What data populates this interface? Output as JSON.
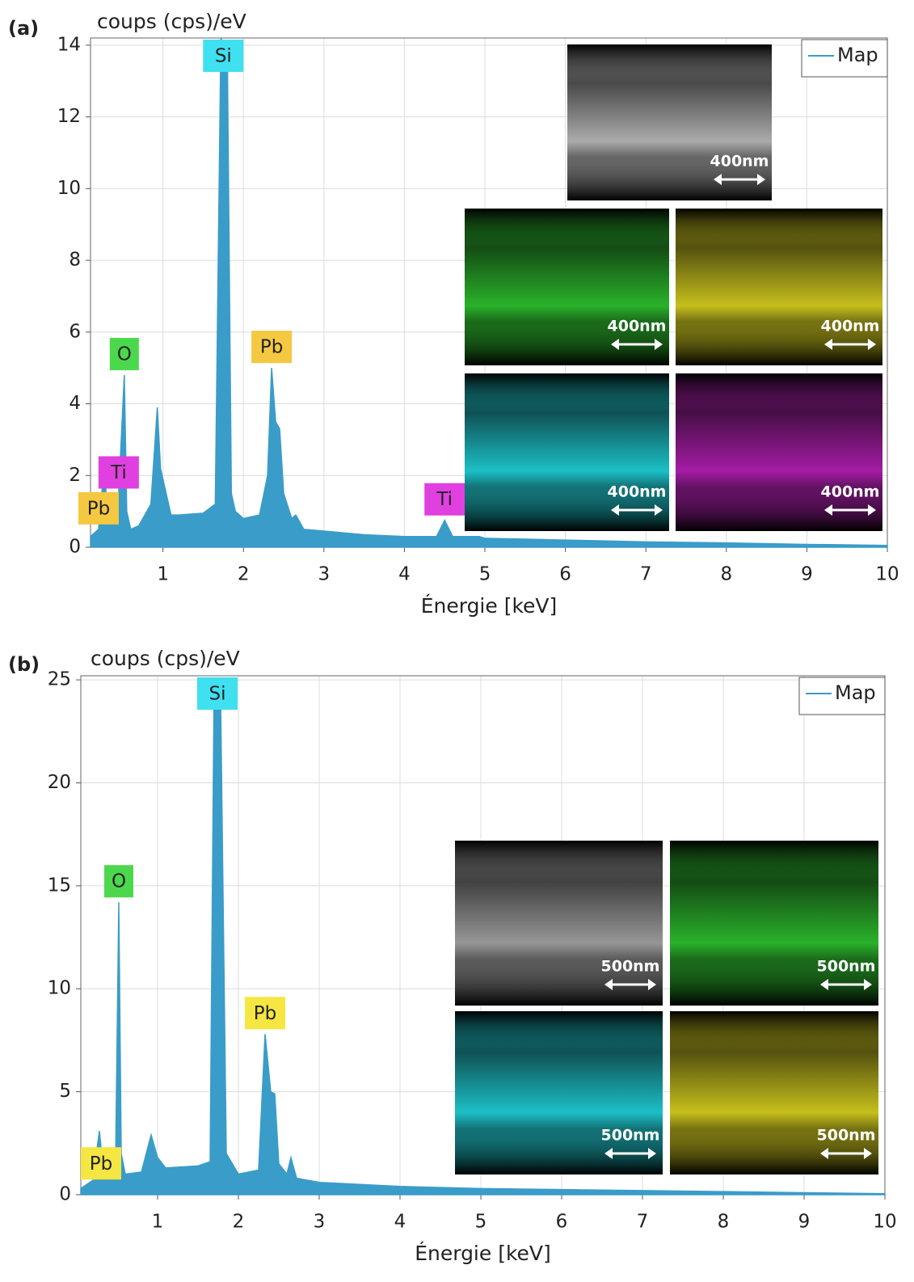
{
  "chart_data": [
    {
      "type": "area",
      "label": "(a)",
      "ylabel": "coups (cps)/eV",
      "xlabel": "Énergie [keV]",
      "x": [
        0.1,
        0.2,
        0.28,
        0.3,
        0.4,
        0.45,
        0.52,
        0.55,
        0.6,
        0.7,
        0.85,
        0.93,
        0.97,
        1.03,
        1.1,
        1.2,
        1.5,
        1.65,
        1.72,
        1.8,
        1.85,
        1.9,
        2.0,
        2.2,
        2.3,
        2.35,
        2.4,
        2.45,
        2.5,
        2.6,
        2.65,
        2.75,
        3.0,
        3.5,
        4.0,
        4.4,
        4.5,
        4.6,
        4.93,
        5.0,
        6,
        7,
        8,
        9,
        10
      ],
      "series": [
        {
          "name": "Map",
          "color": "#3a9cc8",
          "values": [
            0.3,
            0.5,
            2.5,
            1.0,
            0.6,
            1.5,
            4.8,
            1.0,
            0.5,
            0.6,
            1.2,
            3.9,
            2.2,
            1.6,
            0.9,
            0.9,
            0.95,
            1.2,
            14.2,
            13.8,
            1.5,
            1.0,
            0.8,
            0.9,
            2.0,
            5.0,
            3.5,
            3.3,
            1.5,
            0.8,
            0.9,
            0.5,
            0.45,
            0.35,
            0.3,
            0.3,
            0.75,
            0.3,
            0.3,
            0.25,
            0.2,
            0.15,
            0.12,
            0.08,
            0.05
          ]
        }
      ],
      "xlim": [
        0.1,
        10
      ],
      "ylim": [
        0,
        14.2
      ],
      "xticks": [
        1,
        2,
        3,
        4,
        5,
        6,
        7,
        8,
        9,
        10
      ],
      "yticks": [
        0,
        2,
        4,
        6,
        8,
        10,
        12,
        14
      ],
      "grid": true,
      "legend": "upper right",
      "annotations": [
        {
          "text": "Si",
          "x": 1.75,
          "y": 14.2,
          "color": "#3fe0f0"
        },
        {
          "text": "O",
          "x": 0.52,
          "y": 4.8,
          "color": "#4cd84c"
        },
        {
          "text": "Pb",
          "x": 2.35,
          "y": 5.0,
          "color": "#f5c842"
        },
        {
          "text": "Ti",
          "x": 0.45,
          "y": 1.5,
          "color": "#e040e0"
        },
        {
          "text": "Pb",
          "x": 0.2,
          "y": 0.5,
          "color": "#f5c842"
        },
        {
          "text": "Ti",
          "x": 4.5,
          "y": 0.75,
          "color": "#e040e0"
        }
      ],
      "insets": [
        {
          "scale": "400nm",
          "color": "#c8c8c8"
        },
        {
          "scale": "400nm",
          "color": "#30d030"
        },
        {
          "scale": "400nm",
          "color": "#e8e020"
        },
        {
          "scale": "400nm",
          "color": "#20e0e8"
        },
        {
          "scale": "400nm",
          "color": "#c020c0"
        }
      ]
    },
    {
      "type": "area",
      "label": "(b)",
      "ylabel": "coups (cps)/eV",
      "xlabel": "Énergie [keV]",
      "x": [
        0.05,
        0.2,
        0.28,
        0.32,
        0.4,
        0.48,
        0.52,
        0.55,
        0.6,
        0.8,
        0.92,
        1.0,
        1.1,
        1.5,
        1.65,
        1.7,
        1.78,
        1.85,
        2.0,
        2.25,
        2.33,
        2.4,
        2.45,
        2.5,
        2.6,
        2.65,
        2.72,
        3,
        4,
        5,
        6,
        7,
        8,
        9,
        10
      ],
      "series": [
        {
          "name": "Map",
          "color": "#3a9cc8",
          "values": [
            0.3,
            0.7,
            3.1,
            1.5,
            1.0,
            1.5,
            14.2,
            2.0,
            1.0,
            1.1,
            2.9,
            1.8,
            1.3,
            1.4,
            1.6,
            25,
            24,
            2,
            1.0,
            1.2,
            7.8,
            5,
            4.9,
            1.5,
            1.0,
            1.8,
            0.8,
            0.6,
            0.4,
            0.3,
            0.25,
            0.2,
            0.15,
            0.1,
            0.05
          ]
        }
      ],
      "xlim": [
        0.05,
        10
      ],
      "ylim": [
        0,
        25.2
      ],
      "xticks": [
        1,
        2,
        3,
        4,
        5,
        6,
        7,
        8,
        9,
        10
      ],
      "yticks": [
        0,
        5,
        10,
        15,
        20,
        25
      ],
      "grid": true,
      "legend": "upper right",
      "annotations": [
        {
          "text": "Si",
          "x": 1.74,
          "y": 25,
          "color": "#3fe0f0"
        },
        {
          "text": "O",
          "x": 0.52,
          "y": 14.2,
          "color": "#4cd84c"
        },
        {
          "text": "Pb",
          "x": 2.33,
          "y": 7.8,
          "color": "#f5e642"
        },
        {
          "text": "Pb",
          "x": 0.3,
          "y": 0.5,
          "color": "#f5e642"
        }
      ],
      "insets": [
        {
          "scale": "500nm",
          "color": "#b0b0b0"
        },
        {
          "scale": "500nm",
          "color": "#30d030"
        },
        {
          "scale": "500nm",
          "color": "#20e0e8"
        },
        {
          "scale": "500nm",
          "color": "#e8e020"
        }
      ]
    }
  ]
}
